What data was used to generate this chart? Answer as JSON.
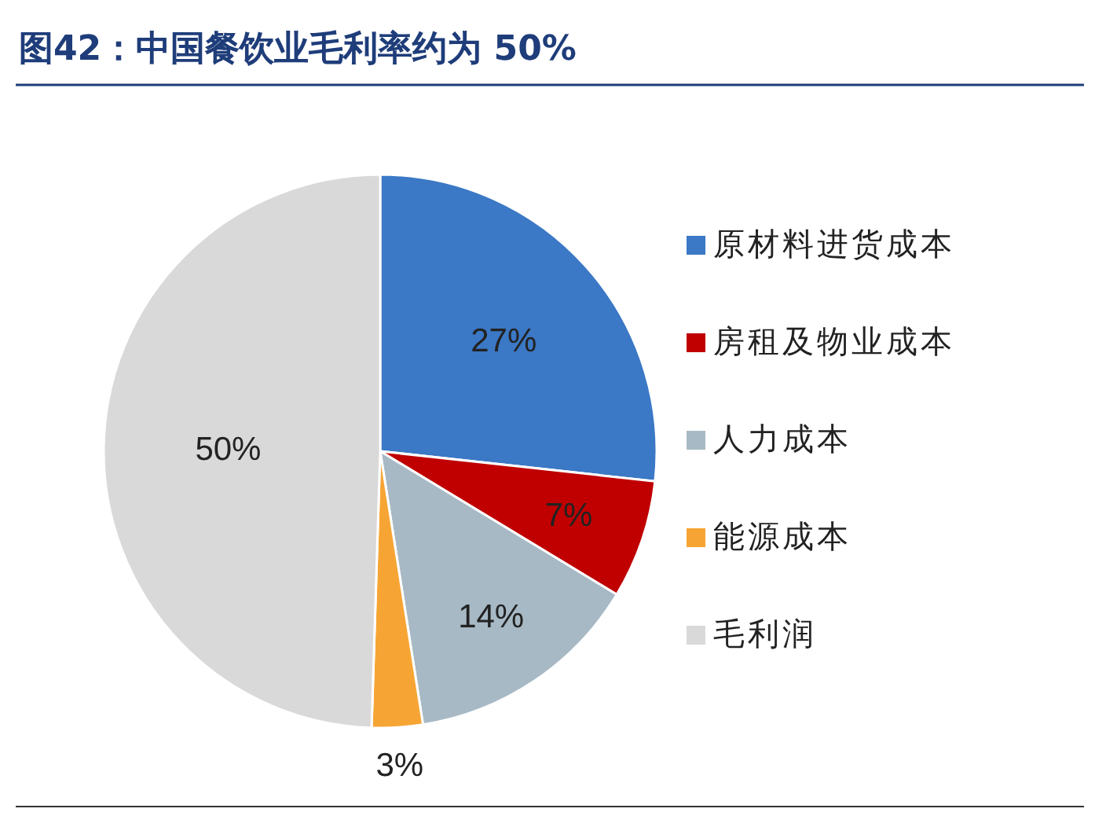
{
  "chart_data": {
    "type": "pie",
    "title": "图42：中国餐饮业毛利率约为 50%",
    "categories": [
      "原材料进货成本",
      "房租及物业成本",
      "人力成本",
      "能源成本",
      "毛利润"
    ],
    "values": [
      27,
      7,
      14,
      3,
      50
    ],
    "colors": [
      "#3b78c5",
      "#c00000",
      "#a7b9c5",
      "#f6a534",
      "#d9d9d9"
    ],
    "value_labels": [
      "27%",
      "7%",
      "14%",
      "3%",
      "50%"
    ],
    "legend": "right"
  }
}
